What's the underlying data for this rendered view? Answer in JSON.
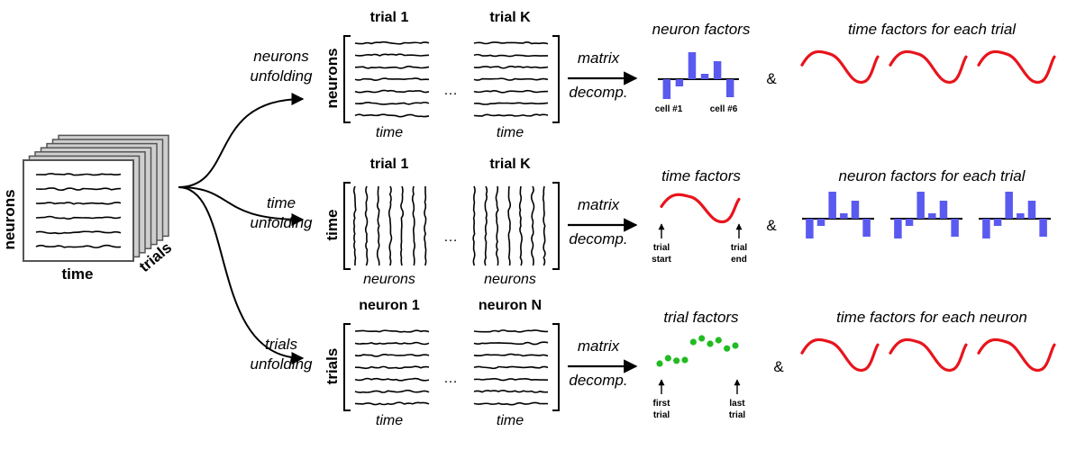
{
  "tensor": {
    "neurons": "neurons",
    "time": "time",
    "trials": "trials"
  },
  "rows": [
    {
      "unfold": [
        "neurons",
        "unfolding"
      ],
      "axis": "neurons",
      "trace_orient": "horizontal",
      "left_title": "trial 1",
      "right_title": "trial K",
      "bottom_left": "time",
      "bottom_right": "time",
      "op": [
        "matrix",
        "decomp."
      ],
      "result_title": "neuron factors",
      "result_kind": "bars",
      "result_notes": [
        "cell #1",
        "cell #6"
      ],
      "amp": "&",
      "tail_title": "time factors for each trial",
      "tail_kind": "curves"
    },
    {
      "unfold": [
        "time",
        "unfolding"
      ],
      "axis": "time",
      "trace_orient": "vertical",
      "left_title": "trial 1",
      "right_title": "trial K",
      "bottom_left": "neurons",
      "bottom_right": "neurons",
      "op": [
        "matrix",
        "decomp."
      ],
      "result_title": "time factors",
      "result_kind": "curve",
      "result_notes": [
        "trial start",
        "trial end"
      ],
      "amp": "&",
      "tail_title": "neuron factors for each trial",
      "tail_kind": "bars"
    },
    {
      "unfold": [
        "trials",
        "unfolding"
      ],
      "axis": "trials",
      "trace_orient": "horizontal",
      "left_title": "neuron 1",
      "right_title": "neuron N",
      "bottom_left": "time",
      "bottom_right": "time",
      "op": [
        "matrix",
        "decomp."
      ],
      "result_title": "trial factors",
      "result_kind": "dots",
      "result_notes": [
        "first trial",
        "last trial"
      ],
      "amp": "&",
      "tail_title": "time factors for each neuron",
      "tail_kind": "curves"
    }
  ],
  "ellipsis": "…",
  "colors": {
    "bar": "#5a5af0",
    "curve": "#e8141c",
    "dot": "#22bb22",
    "ink": "#000000"
  },
  "neuron_factor_values": [
    -0.55,
    -0.2,
    0.75,
    0.15,
    0.5,
    -0.5
  ],
  "trial_factor_values": [
    0.3,
    0.45,
    0.38,
    0.4,
    0.9,
    1.0,
    0.85,
    0.95,
    0.72,
    0.8
  ]
}
